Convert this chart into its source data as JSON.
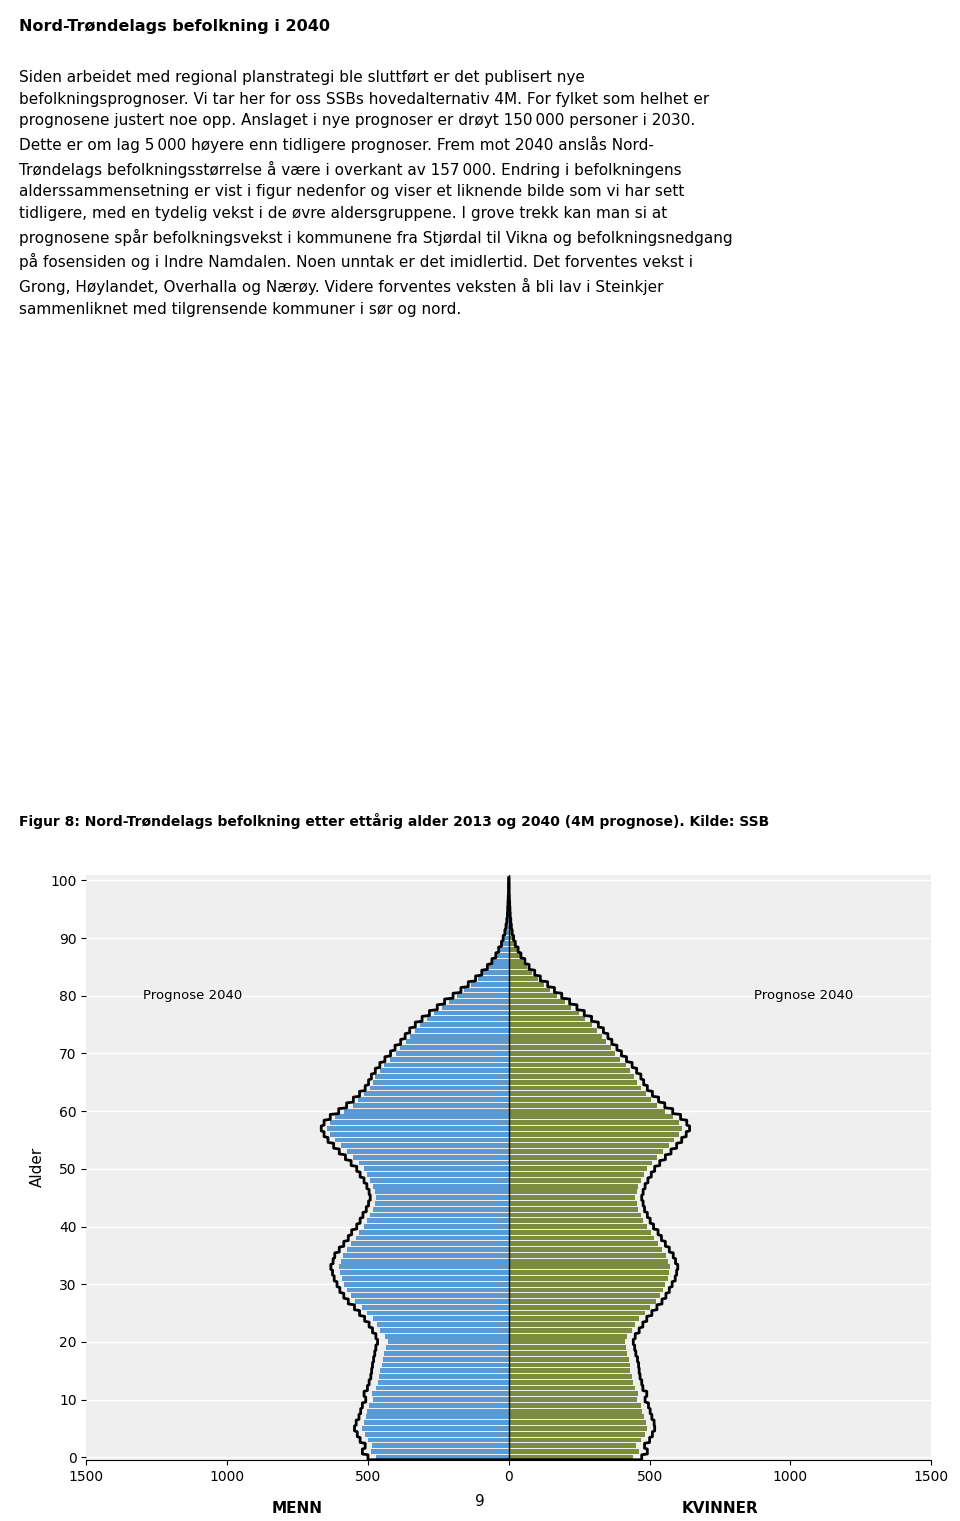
{
  "title_fig": "Figur 8: Nord-Trøndelags befolkning etter ettårig alder 2013 og 2040 (4M prognose). Kilde: SSB",
  "header_title": "Nord-Trøndelags befolkning i 2040",
  "header_lines": [
    "Siden arbeidet med regional planstrategi ble sluttført er det publisert nye befolkningsprognoser. Vi tar her for oss SSBs hovedalternativ 4M. For fylket som helhet er prognosene justert noe opp. Anslaget i nye prognoser er drøyt 150 000 personer i 2030.",
    "Dette er om lag 5 000 høyere enn tidligere prognoser. Frem mot 2040 anslås Nord-Trøndelags befolkningsstørrelse å være i overkant av 157 000. Endring i befolkningens alderssammensetning er vist i figur nedenfor og viser et liknende bilde som vi har sett tidligere, med en tydelig vekst i de øvre aldersgruppene. I grove trekk kan man si at prognosene spår befolkningsvekst i kommunene fra Stjørdal til Vikna og befolkningsnedgang på fosensiden og i Indre Namdalen. Noen unntak er det imidlertid. Det forventes vekst i Grong, Høylandet, Overhalla og Nærøy. Videre forventes veksten å bli lav i Steinkjer sammenliknet med tilgrensende kommuner i sør og nord."
  ],
  "ylabel": "Alder",
  "xlabel_left": "MENN",
  "xlabel_right": "KVINNER",
  "xlim": [
    -1500,
    1500
  ],
  "ylim": [
    -0.5,
    101
  ],
  "xticks": [
    -1500,
    -1000,
    -500,
    0,
    500,
    1000,
    1500
  ],
  "xtick_labels": [
    "1500",
    "1000",
    "500",
    "0",
    "500",
    "1000",
    "1500"
  ],
  "yticks": [
    0,
    10,
    20,
    30,
    40,
    50,
    60,
    70,
    80,
    90,
    100
  ],
  "bar_color_men": "#5B9BD5",
  "bar_color_women": "#7B8C3E",
  "line_color": "#000000",
  "label_prognose_men": "Prognose 2040",
  "label_prognose_women": "Prognose 2040",
  "prognose_men_x": -1300,
  "prognose_women_x": 870,
  "prognose_y": 80,
  "background_color": "#EFEFEF",
  "page_number": "9",
  "men_2013": [
    470,
    490,
    485,
    500,
    510,
    520,
    515,
    508,
    502,
    496,
    482,
    486,
    472,
    466,
    460,
    456,
    452,
    448,
    442,
    436,
    430,
    440,
    456,
    468,
    482,
    502,
    522,
    546,
    562,
    574,
    584,
    594,
    598,
    604,
    596,
    590,
    574,
    560,
    544,
    532,
    514,
    502,
    492,
    482,
    476,
    472,
    476,
    482,
    492,
    502,
    514,
    532,
    554,
    574,
    596,
    616,
    636,
    646,
    636,
    616,
    584,
    554,
    534,
    514,
    494,
    484,
    474,
    458,
    442,
    422,
    402,
    386,
    366,
    350,
    334,
    314,
    290,
    264,
    238,
    212,
    184,
    158,
    134,
    110,
    90,
    72,
    58,
    44,
    34,
    24,
    18,
    13,
    10,
    7,
    5,
    4,
    3,
    2,
    1,
    1,
    0
  ],
  "women_2013": [
    442,
    462,
    452,
    470,
    484,
    490,
    488,
    480,
    474,
    468,
    456,
    460,
    448,
    442,
    436,
    432,
    430,
    426,
    420,
    416,
    412,
    420,
    436,
    448,
    462,
    482,
    502,
    522,
    536,
    546,
    556,
    566,
    570,
    574,
    566,
    558,
    544,
    530,
    516,
    506,
    490,
    478,
    468,
    458,
    454,
    448,
    454,
    460,
    470,
    480,
    490,
    508,
    528,
    548,
    568,
    586,
    604,
    614,
    604,
    584,
    554,
    526,
    506,
    486,
    468,
    456,
    446,
    432,
    416,
    396,
    378,
    362,
    344,
    330,
    314,
    296,
    272,
    248,
    222,
    198,
    172,
    148,
    126,
    102,
    84,
    66,
    52,
    40,
    30,
    22,
    16,
    11,
    8,
    6,
    4,
    3,
    2,
    2,
    1,
    1,
    0
  ],
  "men_2040": [
    500,
    520,
    510,
    528,
    538,
    548,
    542,
    532,
    526,
    520,
    508,
    514,
    502,
    496,
    490,
    487,
    484,
    480,
    476,
    472,
    466,
    472,
    484,
    496,
    512,
    530,
    548,
    570,
    586,
    600,
    610,
    620,
    626,
    632,
    624,
    618,
    602,
    586,
    570,
    558,
    540,
    528,
    518,
    506,
    498,
    492,
    496,
    504,
    514,
    528,
    540,
    560,
    580,
    602,
    622,
    642,
    656,
    666,
    656,
    634,
    604,
    576,
    552,
    530,
    510,
    498,
    488,
    474,
    458,
    440,
    420,
    404,
    384,
    368,
    352,
    332,
    308,
    282,
    254,
    228,
    198,
    170,
    144,
    118,
    96,
    76,
    60,
    46,
    36,
    26,
    20,
    14,
    10,
    7,
    5,
    4,
    3,
    2,
    1,
    1,
    0
  ],
  "women_2040": [
    472,
    492,
    482,
    500,
    510,
    518,
    516,
    508,
    502,
    496,
    484,
    490,
    476,
    472,
    466,
    463,
    461,
    457,
    451,
    447,
    442,
    449,
    463,
    476,
    490,
    508,
    526,
    544,
    558,
    570,
    580,
    591,
    596,
    600,
    592,
    584,
    570,
    556,
    542,
    530,
    514,
    502,
    492,
    482,
    477,
    472,
    477,
    484,
    494,
    506,
    518,
    536,
    556,
    576,
    596,
    614,
    630,
    642,
    632,
    610,
    582,
    554,
    532,
    510,
    492,
    479,
    469,
    454,
    438,
    418,
    400,
    384,
    366,
    352,
    336,
    318,
    294,
    268,
    242,
    216,
    188,
    162,
    138,
    112,
    92,
    72,
    57,
    43,
    33,
    23,
    17,
    12,
    9,
    7,
    5,
    4,
    3,
    2,
    1,
    1,
    0
  ]
}
